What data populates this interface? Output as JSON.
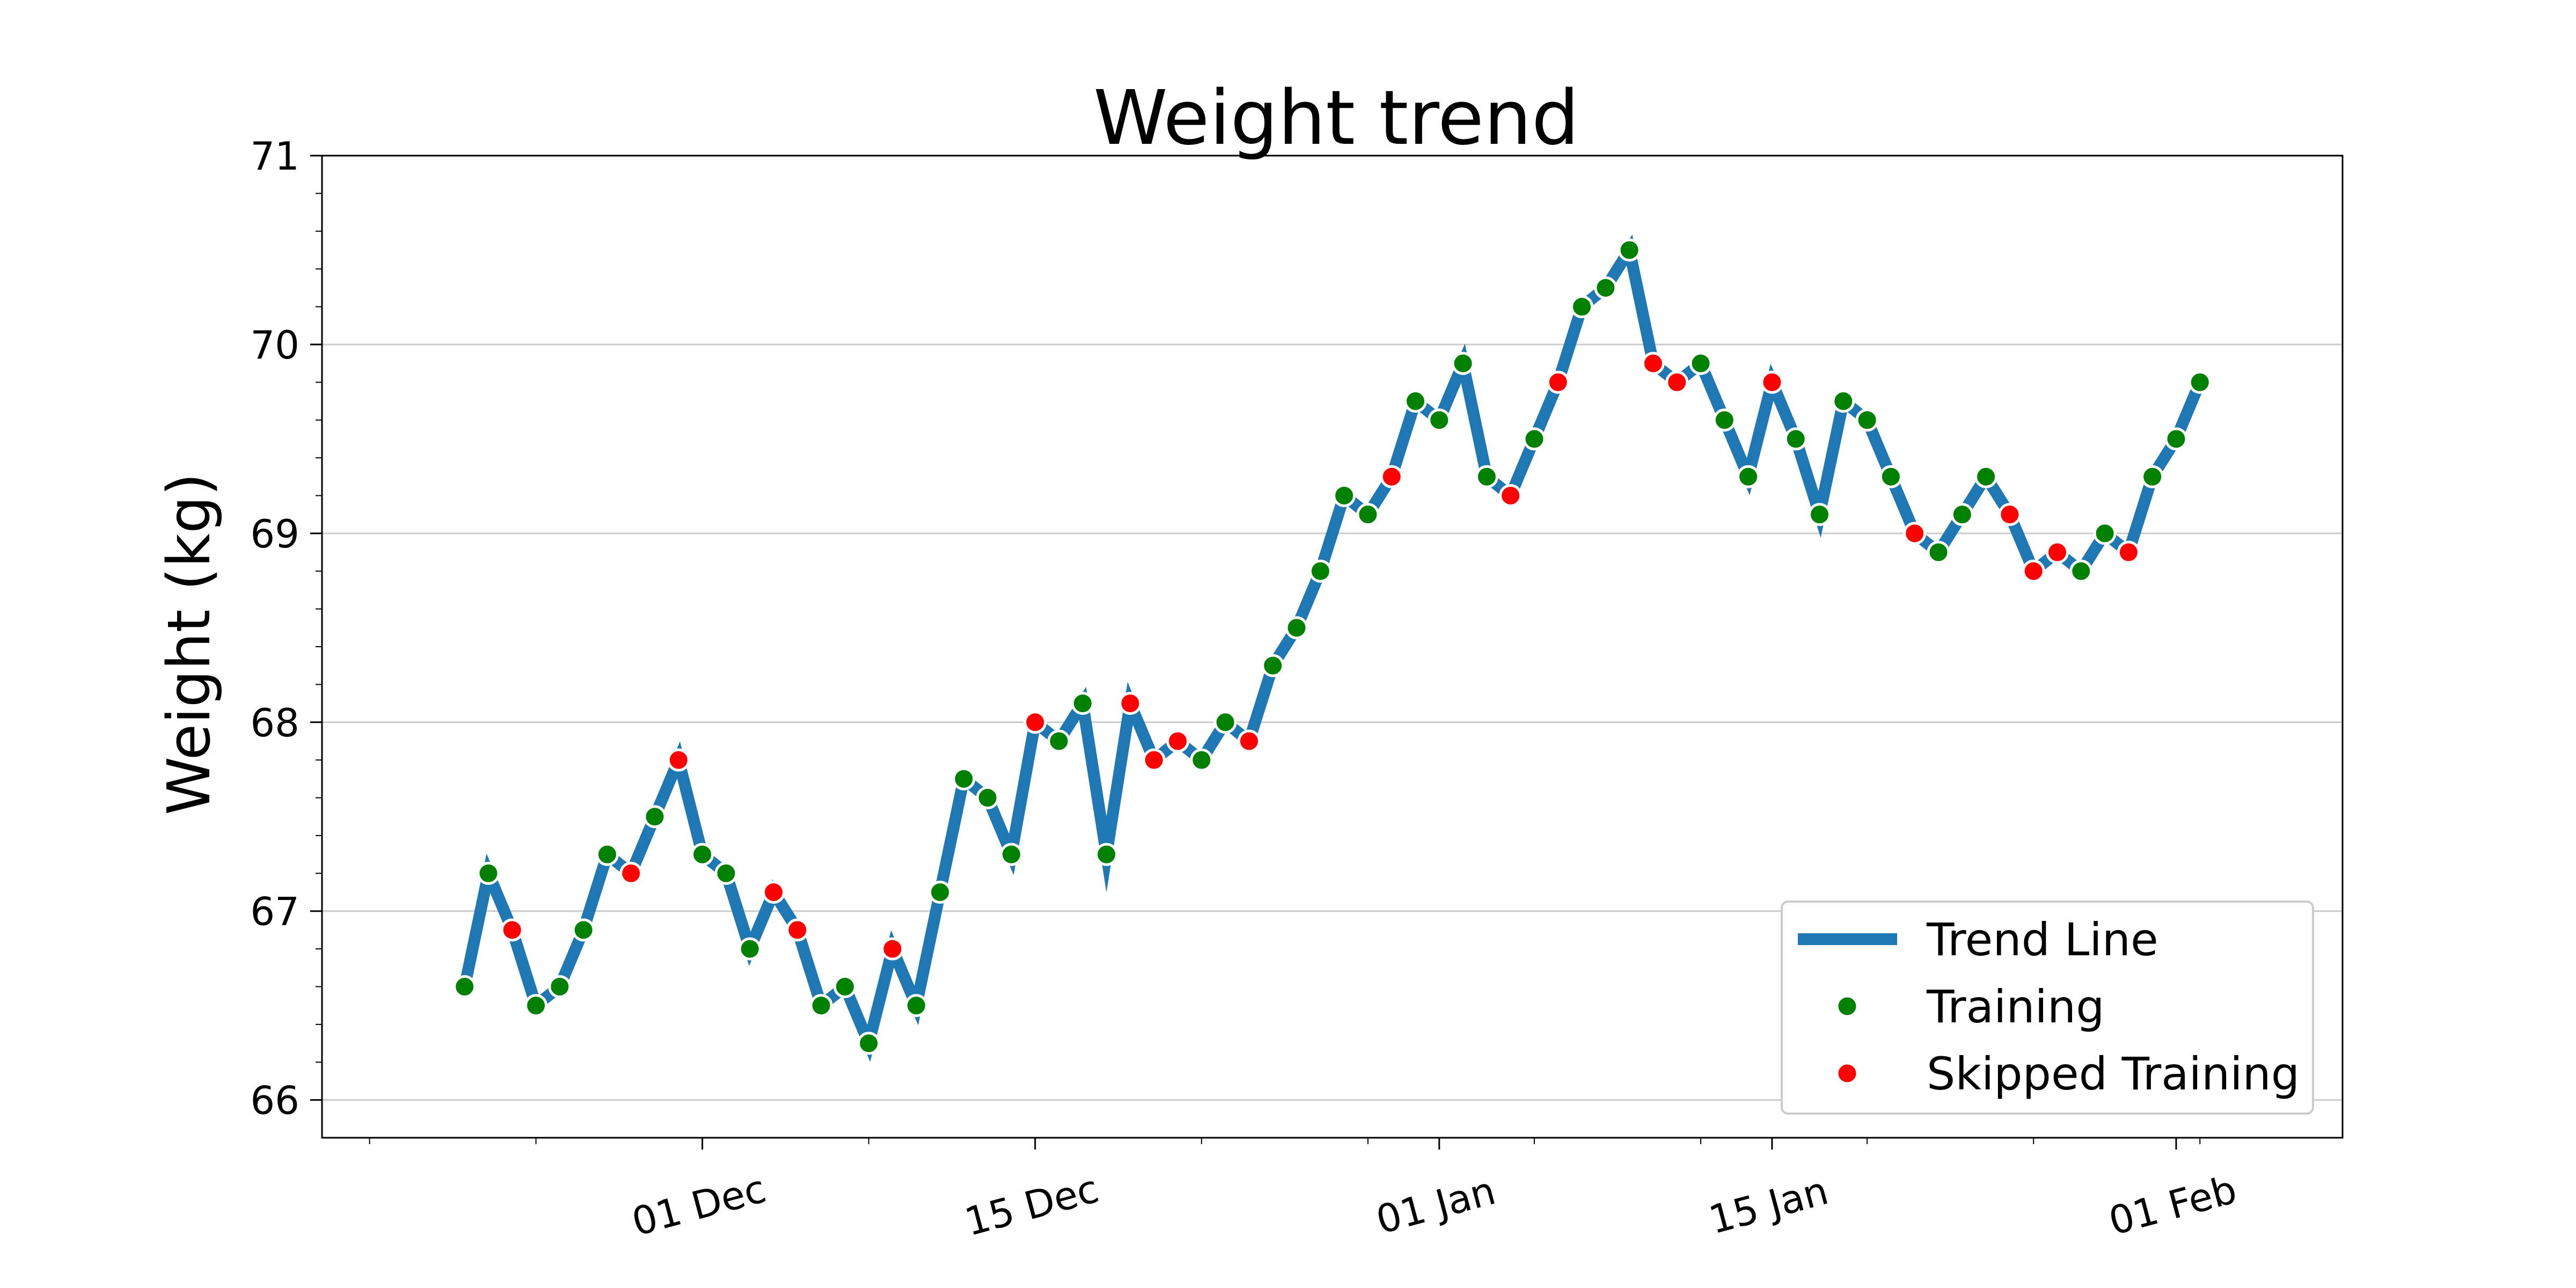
{
  "colors": {
    "line": "#1f77b4",
    "training": "#008000",
    "skipped": "#ff0000",
    "grid": "#cccccc",
    "axis": "#000000"
  },
  "chart_data": {
    "type": "line",
    "title": "Weight trend",
    "xlabel": "",
    "ylabel": "Weight (kg)",
    "x_start": "2024-11-21",
    "xlim": [
      "2024-11-15",
      "2025-02-08"
    ],
    "ylim": [
      65.8,
      71
    ],
    "yticks": [
      66,
      67,
      68,
      69,
      70,
      71
    ],
    "xticks": [
      {
        "date": "2024-12-01",
        "label": "01 Dec"
      },
      {
        "date": "2024-12-15",
        "label": "15 Dec"
      },
      {
        "date": "2025-01-01",
        "label": "01 Jan"
      },
      {
        "date": "2025-01-15",
        "label": "15 Jan"
      },
      {
        "date": "2025-02-01",
        "label": "01 Feb"
      }
    ],
    "grid": "horizontal",
    "legend_position": "lower-right",
    "series": [
      {
        "name": "Trend Line",
        "kind": "line"
      },
      {
        "name": "Training",
        "kind": "marker"
      },
      {
        "name": "Skipped Training",
        "kind": "marker"
      }
    ],
    "points": [
      {
        "date": "2024-11-21",
        "weight": 66.6,
        "status": "Training"
      },
      {
        "date": "2024-11-22",
        "weight": 67.2,
        "status": "Training"
      },
      {
        "date": "2024-11-23",
        "weight": 66.9,
        "status": "Skipped Training"
      },
      {
        "date": "2024-11-24",
        "weight": 66.5,
        "status": "Training"
      },
      {
        "date": "2024-11-25",
        "weight": 66.6,
        "status": "Training"
      },
      {
        "date": "2024-11-26",
        "weight": 66.9,
        "status": "Training"
      },
      {
        "date": "2024-11-27",
        "weight": 67.3,
        "status": "Training"
      },
      {
        "date": "2024-11-28",
        "weight": 67.2,
        "status": "Skipped Training"
      },
      {
        "date": "2024-11-29",
        "weight": 67.5,
        "status": "Training"
      },
      {
        "date": "2024-11-30",
        "weight": 67.8,
        "status": "Skipped Training"
      },
      {
        "date": "2024-12-01",
        "weight": 67.3,
        "status": "Training"
      },
      {
        "date": "2024-12-02",
        "weight": 67.2,
        "status": "Training"
      },
      {
        "date": "2024-12-03",
        "weight": 66.8,
        "status": "Training"
      },
      {
        "date": "2024-12-04",
        "weight": 67.1,
        "status": "Skipped Training"
      },
      {
        "date": "2024-12-05",
        "weight": 66.9,
        "status": "Skipped Training"
      },
      {
        "date": "2024-12-06",
        "weight": 66.5,
        "status": "Training"
      },
      {
        "date": "2024-12-07",
        "weight": 66.6,
        "status": "Training"
      },
      {
        "date": "2024-12-08",
        "weight": 66.3,
        "status": "Training"
      },
      {
        "date": "2024-12-09",
        "weight": 66.8,
        "status": "Skipped Training"
      },
      {
        "date": "2024-12-10",
        "weight": 66.5,
        "status": "Training"
      },
      {
        "date": "2024-12-11",
        "weight": 67.1,
        "status": "Training"
      },
      {
        "date": "2024-12-12",
        "weight": 67.7,
        "status": "Training"
      },
      {
        "date": "2024-12-13",
        "weight": 67.6,
        "status": "Training"
      },
      {
        "date": "2024-12-14",
        "weight": 67.3,
        "status": "Training"
      },
      {
        "date": "2024-12-15",
        "weight": 68.0,
        "status": "Skipped Training"
      },
      {
        "date": "2024-12-16",
        "weight": 67.9,
        "status": "Training"
      },
      {
        "date": "2024-12-17",
        "weight": 68.1,
        "status": "Training"
      },
      {
        "date": "2024-12-18",
        "weight": 67.3,
        "status": "Training"
      },
      {
        "date": "2024-12-19",
        "weight": 68.1,
        "status": "Skipped Training"
      },
      {
        "date": "2024-12-20",
        "weight": 67.8,
        "status": "Skipped Training"
      },
      {
        "date": "2024-12-21",
        "weight": 67.9,
        "status": "Skipped Training"
      },
      {
        "date": "2024-12-22",
        "weight": 67.8,
        "status": "Training"
      },
      {
        "date": "2024-12-23",
        "weight": 68.0,
        "status": "Training"
      },
      {
        "date": "2024-12-24",
        "weight": 67.9,
        "status": "Skipped Training"
      },
      {
        "date": "2024-12-25",
        "weight": 68.3,
        "status": "Training"
      },
      {
        "date": "2024-12-26",
        "weight": 68.5,
        "status": "Training"
      },
      {
        "date": "2024-12-27",
        "weight": 68.8,
        "status": "Training"
      },
      {
        "date": "2024-12-28",
        "weight": 69.2,
        "status": "Training"
      },
      {
        "date": "2024-12-29",
        "weight": 69.1,
        "status": "Training"
      },
      {
        "date": "2024-12-30",
        "weight": 69.3,
        "status": "Skipped Training"
      },
      {
        "date": "2024-12-31",
        "weight": 69.7,
        "status": "Training"
      },
      {
        "date": "2025-01-01",
        "weight": 69.6,
        "status": "Training"
      },
      {
        "date": "2025-01-02",
        "weight": 69.9,
        "status": "Training"
      },
      {
        "date": "2025-01-03",
        "weight": 69.3,
        "status": "Training"
      },
      {
        "date": "2025-01-04",
        "weight": 69.2,
        "status": "Skipped Training"
      },
      {
        "date": "2025-01-05",
        "weight": 69.5,
        "status": "Training"
      },
      {
        "date": "2025-01-06",
        "weight": 69.8,
        "status": "Skipped Training"
      },
      {
        "date": "2025-01-07",
        "weight": 70.2,
        "status": "Training"
      },
      {
        "date": "2025-01-08",
        "weight": 70.3,
        "status": "Training"
      },
      {
        "date": "2025-01-09",
        "weight": 70.5,
        "status": "Training"
      },
      {
        "date": "2025-01-10",
        "weight": 69.9,
        "status": "Skipped Training"
      },
      {
        "date": "2025-01-11",
        "weight": 69.8,
        "status": "Skipped Training"
      },
      {
        "date": "2025-01-12",
        "weight": 69.9,
        "status": "Training"
      },
      {
        "date": "2025-01-13",
        "weight": 69.6,
        "status": "Training"
      },
      {
        "date": "2025-01-14",
        "weight": 69.3,
        "status": "Training"
      },
      {
        "date": "2025-01-15",
        "weight": 69.8,
        "status": "Skipped Training"
      },
      {
        "date": "2025-01-16",
        "weight": 69.5,
        "status": "Training"
      },
      {
        "date": "2025-01-17",
        "weight": 69.1,
        "status": "Training"
      },
      {
        "date": "2025-01-18",
        "weight": 69.7,
        "status": "Training"
      },
      {
        "date": "2025-01-19",
        "weight": 69.6,
        "status": "Training"
      },
      {
        "date": "2025-01-20",
        "weight": 69.3,
        "status": "Training"
      },
      {
        "date": "2025-01-21",
        "weight": 69.0,
        "status": "Skipped Training"
      },
      {
        "date": "2025-01-22",
        "weight": 68.9,
        "status": "Training"
      },
      {
        "date": "2025-01-23",
        "weight": 69.1,
        "status": "Training"
      },
      {
        "date": "2025-01-24",
        "weight": 69.3,
        "status": "Training"
      },
      {
        "date": "2025-01-25",
        "weight": 69.1,
        "status": "Skipped Training"
      },
      {
        "date": "2025-01-26",
        "weight": 68.8,
        "status": "Skipped Training"
      },
      {
        "date": "2025-01-27",
        "weight": 68.9,
        "status": "Skipped Training"
      },
      {
        "date": "2025-01-28",
        "weight": 68.8,
        "status": "Training"
      },
      {
        "date": "2025-01-29",
        "weight": 69.0,
        "status": "Training"
      },
      {
        "date": "2025-01-30",
        "weight": 68.9,
        "status": "Skipped Training"
      },
      {
        "date": "2025-01-31",
        "weight": 69.3,
        "status": "Training"
      },
      {
        "date": "2025-02-01",
        "weight": 69.5,
        "status": "Training"
      },
      {
        "date": "2025-02-02",
        "weight": 69.8,
        "status": "Training"
      }
    ]
  }
}
